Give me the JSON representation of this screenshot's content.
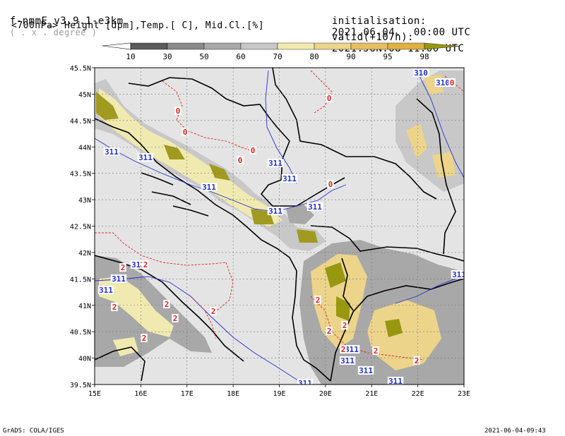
{
  "header": {
    "model": "f-nmmE_v3.9.1-e3km",
    "grid_note": "( . x . degree )",
    "init_label": "initialisation:",
    "init_value": "2021.06.04.  00:00 UTC",
    "fields": "<700hPa> Height [dpm],Temp.[ C], Mid.Cl.[%]",
    "valid_label": "valid(+107h):",
    "valid_value": "2021.JUN.08 11:00 UTC"
  },
  "colorbar": {
    "labels": [
      "10",
      "30",
      "50",
      "60",
      "70",
      "80",
      "90",
      "95",
      "98"
    ],
    "colors": [
      "#5a5a5a",
      "#8a8a8a",
      "#a8a8a8",
      "#c8c8c8",
      "#f0eab0",
      "#ecd48a",
      "#e6c060",
      "#e0b040",
      "#98980e"
    ]
  },
  "axes": {
    "lon_labels": [
      "15E",
      "16E",
      "17E",
      "18E",
      "19E",
      "20E",
      "21E",
      "22E",
      "23E"
    ],
    "lat_labels": [
      "45.5N",
      "45N",
      "44.5N",
      "44N",
      "43.5N",
      "43N",
      "42.5N",
      "42N",
      "41.5N",
      "41N",
      "40.5N",
      "40N",
      "39.5N"
    ]
  },
  "height_labels": [
    "311",
    "311",
    "311",
    "311",
    "311",
    "311",
    "311",
    "311",
    "311",
    "310",
    "310",
    "311",
    "311",
    "311",
    "311",
    "311",
    "311",
    "311"
  ],
  "temp_labels": [
    "0",
    "0",
    "0",
    "0",
    "0",
    "0",
    "0",
    "2",
    "2",
    "2",
    "2",
    "2",
    "2",
    "2",
    "2",
    "2",
    "2",
    "2",
    "2",
    "2"
  ],
  "footer": {
    "left": "GrADS: COLA/IGES",
    "right": "2021-06-04-09:43"
  },
  "colors": {
    "sea_land_bg": "#e4e4e4",
    "height_contour": "#2233cc",
    "temp_contour": "#dd2222",
    "border": "#000000"
  }
}
